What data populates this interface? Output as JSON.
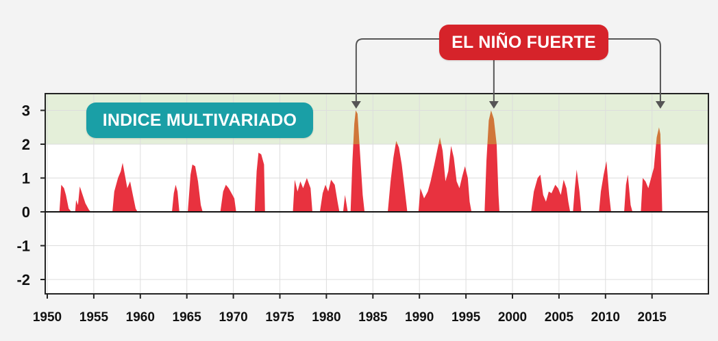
{
  "chart_data": {
    "type": "area",
    "title": "",
    "xlabel": "",
    "ylabel": "",
    "xlim": [
      1950,
      2018
    ],
    "ylim": [
      -2.5,
      3.5
    ],
    "x_ticks": [
      "1950",
      "1955",
      "1960",
      "1965",
      "1970",
      "1975",
      "1980",
      "1985",
      "1990",
      "1995",
      "2000",
      "2005",
      "2010",
      "2015"
    ],
    "y_ticks": [
      "3",
      "2",
      "1",
      "0",
      "-1",
      "-2"
    ],
    "highlight_band": {
      "from": 2,
      "to": 3.5,
      "color": "#e4efd9"
    },
    "colors": {
      "fill": "#e8323f",
      "fill_high": "#d0763a",
      "axis": "#111111",
      "grid": "#dddddd"
    },
    "series": [
      {
        "values": [
          [
            1951.3,
            0
          ],
          [
            1951.5,
            0.8
          ],
          [
            1951.8,
            0.7
          ],
          [
            1952.0,
            0.5
          ],
          [
            1952.3,
            0.1
          ],
          [
            1952.6,
            0
          ],
          [
            1953.0,
            0
          ],
          [
            1953.1,
            0.35
          ],
          [
            1953.3,
            0.2
          ],
          [
            1953.5,
            0.75
          ],
          [
            1953.8,
            0.5
          ],
          [
            1954.1,
            0.25
          ],
          [
            1954.5,
            0.05
          ],
          [
            1954.7,
            0
          ],
          [
            1957.0,
            0
          ],
          [
            1957.2,
            0.6
          ],
          [
            1957.6,
            1.0
          ],
          [
            1957.9,
            1.2
          ],
          [
            1958.1,
            1.45
          ],
          [
            1958.4,
            1.0
          ],
          [
            1958.6,
            0.7
          ],
          [
            1958.9,
            0.9
          ],
          [
            1959.2,
            0.5
          ],
          [
            1959.5,
            0.1
          ],
          [
            1959.7,
            0
          ],
          [
            1963.4,
            0
          ],
          [
            1963.6,
            0.55
          ],
          [
            1963.8,
            0.8
          ],
          [
            1964.0,
            0.6
          ],
          [
            1964.2,
            0
          ],
          [
            1965.1,
            0
          ],
          [
            1965.4,
            1.1
          ],
          [
            1965.6,
            1.4
          ],
          [
            1965.9,
            1.35
          ],
          [
            1966.2,
            0.9
          ],
          [
            1966.5,
            0.2
          ],
          [
            1966.7,
            0
          ],
          [
            1968.6,
            0
          ],
          [
            1968.9,
            0.6
          ],
          [
            1969.2,
            0.8
          ],
          [
            1969.5,
            0.7
          ],
          [
            1969.8,
            0.55
          ],
          [
            1970.1,
            0.4
          ],
          [
            1970.3,
            0
          ],
          [
            1972.3,
            0
          ],
          [
            1972.5,
            1.2
          ],
          [
            1972.7,
            1.75
          ],
          [
            1973.0,
            1.7
          ],
          [
            1973.3,
            1.4
          ],
          [
            1973.4,
            0
          ],
          [
            1976.4,
            0
          ],
          [
            1976.6,
            0.95
          ],
          [
            1976.9,
            0.6
          ],
          [
            1977.2,
            0.9
          ],
          [
            1977.5,
            0.7
          ],
          [
            1977.9,
            1.0
          ],
          [
            1978.3,
            0.7
          ],
          [
            1978.5,
            0
          ],
          [
            1979.3,
            0
          ],
          [
            1979.6,
            0.55
          ],
          [
            1979.9,
            0.8
          ],
          [
            1980.2,
            0.6
          ],
          [
            1980.5,
            0.95
          ],
          [
            1980.9,
            0.8
          ],
          [
            1981.2,
            0.3
          ],
          [
            1981.4,
            0
          ],
          [
            1981.8,
            0
          ],
          [
            1982.0,
            0.5
          ],
          [
            1982.3,
            0
          ],
          [
            1982.6,
            0
          ],
          [
            1982.8,
            1.5
          ],
          [
            1983.0,
            2.6
          ],
          [
            1983.15,
            3.0
          ],
          [
            1983.35,
            2.9
          ],
          [
            1983.6,
            1.8
          ],
          [
            1983.9,
            0.5
          ],
          [
            1984.1,
            0
          ],
          [
            1986.6,
            0
          ],
          [
            1986.9,
            0.9
          ],
          [
            1987.2,
            1.6
          ],
          [
            1987.5,
            2.1
          ],
          [
            1987.8,
            1.9
          ],
          [
            1988.1,
            1.4
          ],
          [
            1988.4,
            0.7
          ],
          [
            1988.7,
            0
          ],
          [
            1989.9,
            0
          ],
          [
            1990.1,
            0.7
          ],
          [
            1990.5,
            0.4
          ],
          [
            1990.9,
            0.6
          ],
          [
            1991.2,
            0.9
          ],
          [
            1991.6,
            1.4
          ],
          [
            1991.9,
            1.8
          ],
          [
            1992.2,
            2.2
          ],
          [
            1992.5,
            1.8
          ],
          [
            1992.8,
            0.9
          ],
          [
            1993.1,
            1.2
          ],
          [
            1993.4,
            1.95
          ],
          [
            1993.7,
            1.6
          ],
          [
            1994.0,
            0.9
          ],
          [
            1994.3,
            0.7
          ],
          [
            1994.6,
            1.05
          ],
          [
            1994.9,
            1.35
          ],
          [
            1995.2,
            1.0
          ],
          [
            1995.4,
            0.3
          ],
          [
            1995.6,
            0
          ],
          [
            1997.0,
            0
          ],
          [
            1997.2,
            1.5
          ],
          [
            1997.45,
            2.7
          ],
          [
            1997.7,
            3.0
          ],
          [
            1998.0,
            2.75
          ],
          [
            1998.3,
            2.0
          ],
          [
            1998.5,
            0.5
          ],
          [
            1998.6,
            0
          ],
          [
            2002.0,
            0
          ],
          [
            2002.3,
            0.6
          ],
          [
            2002.7,
            1.0
          ],
          [
            2003.0,
            1.1
          ],
          [
            2003.3,
            0.5
          ],
          [
            2003.6,
            0.3
          ],
          [
            2003.9,
            0.6
          ],
          [
            2004.2,
            0.55
          ],
          [
            2004.6,
            0.8
          ],
          [
            2004.9,
            0.7
          ],
          [
            2005.2,
            0.5
          ],
          [
            2005.5,
            0.95
          ],
          [
            2005.8,
            0.7
          ],
          [
            2006.0,
            0.3
          ],
          [
            2006.2,
            0
          ],
          [
            2006.5,
            0
          ],
          [
            2006.7,
            0.7
          ],
          [
            2006.9,
            1.25
          ],
          [
            2007.2,
            0.6
          ],
          [
            2007.4,
            0
          ],
          [
            2009.3,
            0
          ],
          [
            2009.5,
            0.6
          ],
          [
            2009.8,
            1.1
          ],
          [
            2010.1,
            1.5
          ],
          [
            2010.4,
            0.5
          ],
          [
            2010.6,
            0
          ],
          [
            2012.0,
            0
          ],
          [
            2012.2,
            0.8
          ],
          [
            2012.4,
            1.1
          ],
          [
            2012.7,
            0.2
          ],
          [
            2012.9,
            0
          ],
          [
            2013.8,
            0
          ],
          [
            2014.0,
            1.0
          ],
          [
            2014.3,
            0.9
          ],
          [
            2014.6,
            0.7
          ],
          [
            2014.9,
            1.0
          ],
          [
            2015.2,
            1.3
          ],
          [
            2015.5,
            2.2
          ],
          [
            2015.75,
            2.5
          ],
          [
            2015.9,
            2.3
          ],
          [
            2016.1,
            0
          ]
        ]
      }
    ],
    "annotations": [
      {
        "text": "INDICE MULTIVARIADO"
      },
      {
        "text": "EL NIÑO FUERTE",
        "targets": [
          [
            1983.2,
            3.05
          ],
          [
            1998.0,
            3.05
          ],
          [
            2015.9,
            3.05
          ]
        ]
      }
    ]
  }
}
